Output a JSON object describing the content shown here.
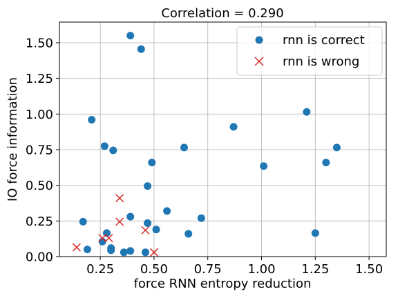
{
  "chart_data": {
    "type": "scatter",
    "title": "Correlation = 0.290",
    "xlabel": "force RNN entropy reduction",
    "ylabel": "IO force information",
    "xlim": [
      0.06,
      1.58
    ],
    "ylim": [
      0.0,
      1.645
    ],
    "xticks": [
      "0.25",
      "0.50",
      "0.75",
      "1.00",
      "1.25",
      "1.50"
    ],
    "xtick_values": [
      0.25,
      0.5,
      0.75,
      1.0,
      1.25,
      1.5
    ],
    "yticks": [
      "0.00",
      "0.25",
      "0.50",
      "0.75",
      "1.00",
      "1.25",
      "1.50"
    ],
    "ytick_values": [
      0.0,
      0.25,
      0.5,
      0.75,
      1.0,
      1.25,
      1.5
    ],
    "grid": true,
    "legend_position": "top-right",
    "series": [
      {
        "name": "rnn is correct",
        "marker": "circle",
        "color": "#1f77b4",
        "points": [
          [
            0.39,
            1.55
          ],
          [
            0.44,
            1.455
          ],
          [
            0.21,
            0.96
          ],
          [
            1.21,
            1.015
          ],
          [
            0.87,
            0.91
          ],
          [
            0.27,
            0.775
          ],
          [
            0.31,
            0.745
          ],
          [
            0.64,
            0.765
          ],
          [
            1.35,
            0.765
          ],
          [
            0.49,
            0.66
          ],
          [
            1.3,
            0.66
          ],
          [
            1.01,
            0.635
          ],
          [
            0.47,
            0.495
          ],
          [
            0.56,
            0.32
          ],
          [
            0.39,
            0.28
          ],
          [
            0.72,
            0.27
          ],
          [
            0.17,
            0.245
          ],
          [
            0.47,
            0.235
          ],
          [
            0.51,
            0.19
          ],
          [
            0.28,
            0.165
          ],
          [
            0.66,
            0.16
          ],
          [
            1.25,
            0.165
          ],
          [
            0.26,
            0.105
          ],
          [
            0.3,
            0.06
          ],
          [
            0.19,
            0.05
          ],
          [
            0.3,
            0.045
          ],
          [
            0.39,
            0.04
          ],
          [
            0.36,
            0.03
          ],
          [
            0.46,
            0.03
          ]
        ]
      },
      {
        "name": "rnn is wrong",
        "marker": "x",
        "color": "#d62728",
        "points": [
          [
            0.14,
            0.065
          ],
          [
            0.26,
            0.13
          ],
          [
            0.29,
            0.13
          ],
          [
            0.34,
            0.41
          ],
          [
            0.34,
            0.245
          ],
          [
            0.46,
            0.185
          ],
          [
            0.5,
            0.03
          ]
        ]
      }
    ]
  }
}
